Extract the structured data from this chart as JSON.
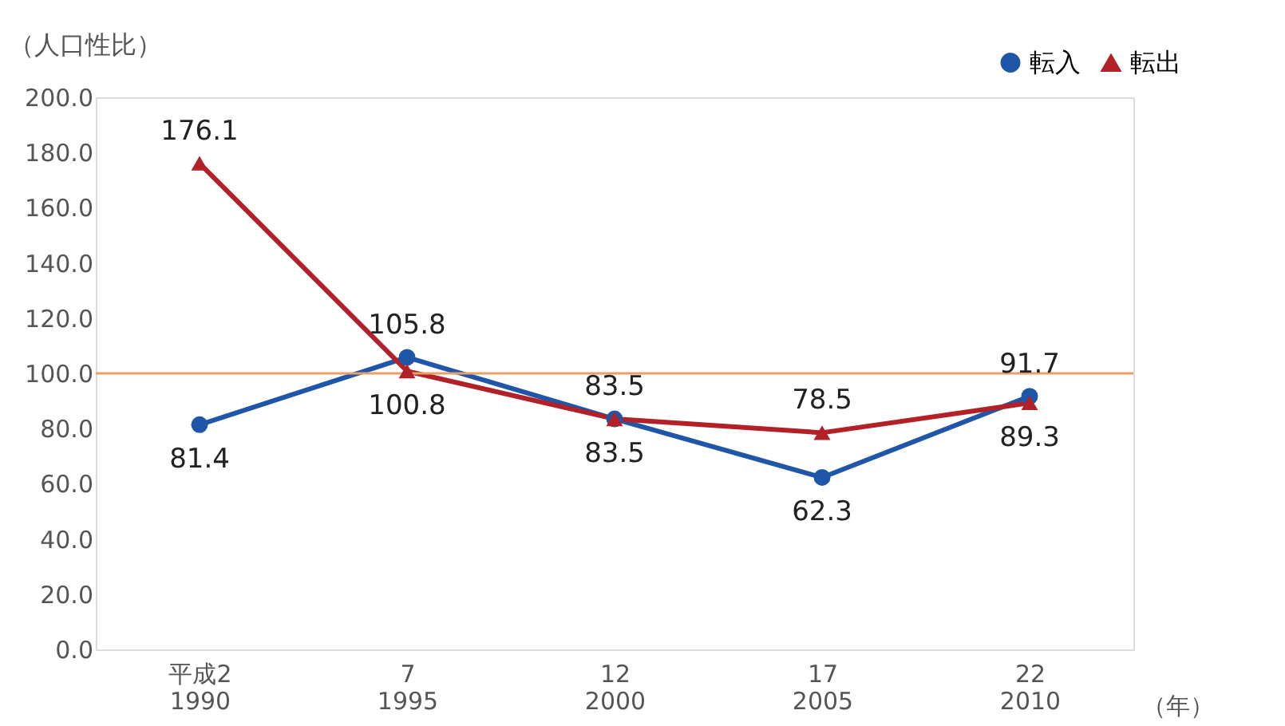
{
  "chart_data": {
    "type": "line",
    "ylabel": "（人口性比）",
    "xlabel": "（年）",
    "categories": [
      "平成2\n1990",
      "7\n1995",
      "12\n2000",
      "17\n2005",
      "22\n2010"
    ],
    "series": [
      {
        "name": "転入",
        "color": "#1f56a8",
        "marker": "circle",
        "values": [
          81.4,
          105.8,
          83.5,
          62.3,
          91.7
        ]
      },
      {
        "name": "転出",
        "color": "#b22028",
        "marker": "triangle",
        "values": [
          176.1,
          100.8,
          83.5,
          78.5,
          89.3
        ]
      }
    ],
    "ylim": [
      0,
      200
    ],
    "yticks": [
      {
        "value": 0,
        "label": "0.0"
      },
      {
        "value": 20,
        "label": "20.0"
      },
      {
        "value": 40,
        "label": "40.0"
      },
      {
        "value": 60,
        "label": "60.0"
      },
      {
        "value": 80,
        "label": "80.0"
      },
      {
        "value": 100,
        "label": "100.0"
      },
      {
        "value": 120,
        "label": "120.0"
      },
      {
        "value": 140,
        "label": "140.0"
      },
      {
        "value": 160,
        "label": "160.0"
      },
      {
        "value": 180,
        "label": "180.0"
      },
      {
        "value": 200,
        "label": "200.0"
      }
    ],
    "ref_lines": [
      {
        "axis": "y",
        "value": 100,
        "color": "#e8a06a"
      }
    ],
    "data_labels": true,
    "grid": false,
    "legend": "top right",
    "line_style": "solid"
  }
}
